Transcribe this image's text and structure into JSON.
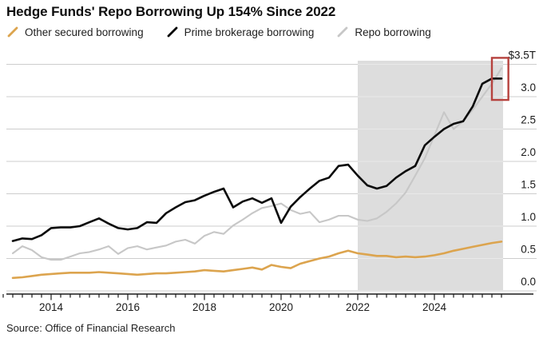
{
  "page": {
    "title": "Hedge Funds' Repo Borrowing Up 154% Since 2022",
    "source": "Source: Office of Financial Research"
  },
  "colors": {
    "background": "#ffffff",
    "title_text": "#0d0d0d",
    "axis_text": "#1a1a1a",
    "axis_line": "#1a1a1a",
    "gridline": "#cdcdcd",
    "gridline_on_shade": "#e9e9e9",
    "shaded_region": "#dddddd",
    "highlight_box": "#b6423e"
  },
  "chart_data": {
    "type": "line",
    "title": "Hedge Funds' Repo Borrowing Up 154% Since 2022",
    "x_unit": "year",
    "x_start": 2013.0,
    "x_step": 0.25,
    "xlim": [
      2012.85,
      2025.95
    ],
    "ylim": [
      0,
      3.5
    ],
    "grid": "horizontal",
    "legend_position": "top-left",
    "y_tick_labels": [
      "0.0",
      "0.5",
      "1.0",
      "1.5",
      "2.0",
      "2.5",
      "3.0",
      "$3.5T"
    ],
    "y_tick_values": [
      0,
      0.5,
      1.0,
      1.5,
      2.0,
      2.5,
      3.0,
      3.5
    ],
    "x_tick_labels": [
      "2014",
      "2016",
      "2018",
      "2020",
      "2022",
      "2024"
    ],
    "x_tick_values": [
      2014,
      2016,
      2018,
      2020,
      2022,
      2024
    ],
    "shaded_region": {
      "x_from": 2022,
      "x_to": 2025.95
    },
    "highlight_box": {
      "x_from": 2025.5,
      "x_to": 2025.93,
      "y_from": 2.95,
      "y_to": 3.6
    },
    "series": [
      {
        "name": "Other secured borrowing",
        "color": "#dca44e",
        "stroke_width": 2.6,
        "values": [
          0.2,
          0.21,
          0.23,
          0.25,
          0.26,
          0.27,
          0.28,
          0.28,
          0.28,
          0.29,
          0.28,
          0.27,
          0.26,
          0.25,
          0.26,
          0.27,
          0.27,
          0.28,
          0.29,
          0.3,
          0.32,
          0.31,
          0.3,
          0.32,
          0.34,
          0.36,
          0.33,
          0.4,
          0.37,
          0.35,
          0.42,
          0.46,
          0.5,
          0.53,
          0.58,
          0.62,
          0.58,
          0.56,
          0.54,
          0.54,
          0.52,
          0.53,
          0.52,
          0.53,
          0.55,
          0.58,
          0.62,
          0.65,
          0.68,
          0.71,
          0.74,
          0.76
        ]
      },
      {
        "name": "Prime brokerage borrowing",
        "color": "#0a0a0a",
        "stroke_width": 2.6,
        "values": [
          0.77,
          0.81,
          0.8,
          0.86,
          0.97,
          0.98,
          0.98,
          1.0,
          1.06,
          1.12,
          1.04,
          0.97,
          0.95,
          0.97,
          1.06,
          1.05,
          1.2,
          1.29,
          1.37,
          1.4,
          1.47,
          1.53,
          1.58,
          1.29,
          1.38,
          1.43,
          1.36,
          1.43,
          1.05,
          1.3,
          1.45,
          1.58,
          1.7,
          1.75,
          1.93,
          1.95,
          1.78,
          1.63,
          1.58,
          1.62,
          1.75,
          1.85,
          1.93,
          2.25,
          2.38,
          2.5,
          2.58,
          2.62,
          2.85,
          3.2,
          3.28,
          3.28
        ]
      },
      {
        "name": "Repo borrowing",
        "color": "#c7c7c7",
        "stroke_width": 2.1,
        "values": [
          0.58,
          0.69,
          0.63,
          0.52,
          0.48,
          0.48,
          0.53,
          0.58,
          0.6,
          0.64,
          0.69,
          0.57,
          0.66,
          0.69,
          0.64,
          0.67,
          0.7,
          0.76,
          0.79,
          0.73,
          0.85,
          0.91,
          0.88,
          1.01,
          1.1,
          1.2,
          1.28,
          1.31,
          1.35,
          1.25,
          1.19,
          1.22,
          1.06,
          1.1,
          1.16,
          1.16,
          1.1,
          1.08,
          1.12,
          1.22,
          1.35,
          1.52,
          1.78,
          2.05,
          2.4,
          2.76,
          2.5,
          2.62,
          2.8,
          3.0,
          3.2,
          3.44
        ]
      }
    ]
  }
}
